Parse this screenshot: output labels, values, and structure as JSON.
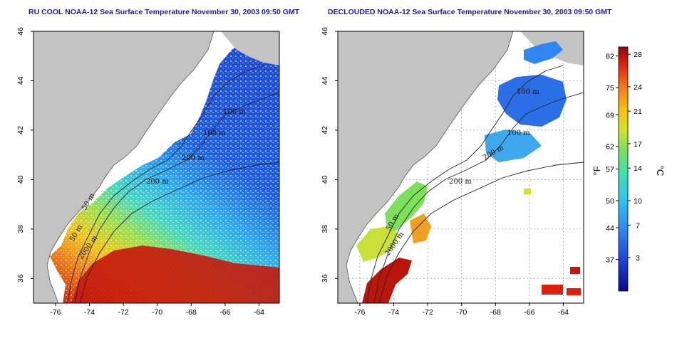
{
  "panels": [
    {
      "id": "left",
      "title": "RU COOL NOAA-12 Sea Surface Temperature November 30, 2003 09:50 GMT",
      "contour_labels": [
        "100 m",
        "100 m",
        "200 m",
        "200 m",
        "50 m",
        "50 m",
        "2000 m"
      ]
    },
    {
      "id": "right",
      "title": "DECLOUDED NOAA-12 Sea Surface Temperature November 30, 2003 09:50 GMT",
      "contour_labels": [
        "100 m",
        "100 m",
        "200 m",
        "200 m",
        "50 m",
        "2000 m"
      ]
    }
  ],
  "axes": {
    "lon_ticks": [
      "-76",
      "-74",
      "-72",
      "-70",
      "-68",
      "-66",
      "-64"
    ],
    "lat_ticks": [
      "36",
      "38",
      "40",
      "42",
      "44",
      "46"
    ]
  },
  "colorbar": {
    "fahrenheit_label": "°F",
    "celsius_label": "°C",
    "fahrenheit_ticks": [
      "82",
      "75",
      "69",
      "62",
      "57",
      "50",
      "44",
      "37"
    ],
    "celsius_ticks": [
      "28",
      "24",
      "21",
      "17",
      "14",
      "10",
      "7",
      "3"
    ],
    "colors": [
      "#0a0a8c",
      "#1f3fd6",
      "#2e86f0",
      "#31c6f0",
      "#3fe0b0",
      "#7ce05a",
      "#d2e22a",
      "#f5c211",
      "#f5761a",
      "#d9220e",
      "#8a0a0a"
    ]
  },
  "colors": {
    "land": "#c3c3c3",
    "nodata": "#ffffff",
    "title": "#1a1aa6"
  }
}
